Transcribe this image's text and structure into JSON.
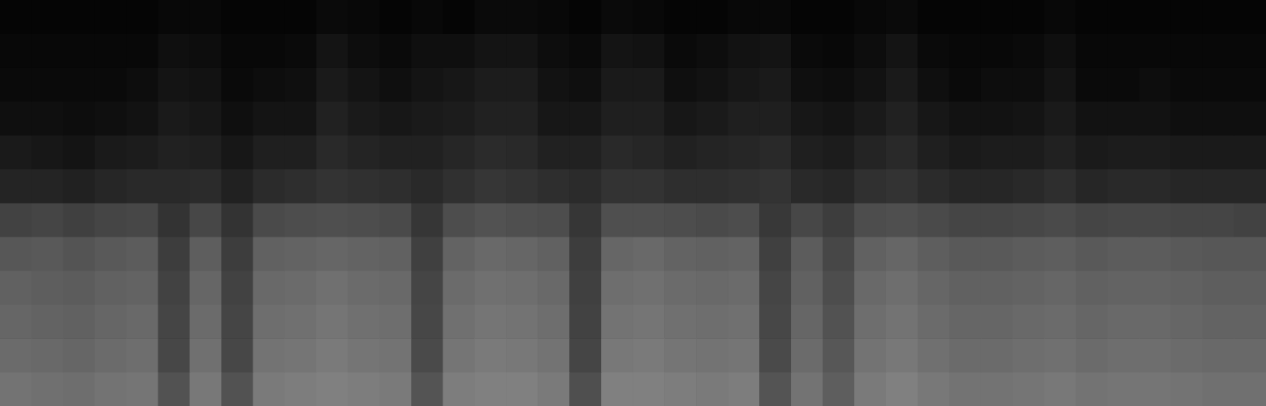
{
  "chart_data": {
    "type": "heatmap",
    "color": "#ffffff",
    "grid": false,
    "tick_labels": false,
    "cells": [
      [
        2,
        2,
        2,
        2,
        2,
        3,
        3,
        2,
        2,
        2,
        4,
        3,
        2,
        3,
        2,
        4,
        4,
        3,
        2,
        4,
        3,
        2,
        2,
        3,
        3,
        2,
        2,
        3,
        4,
        2,
        2,
        2,
        2,
        3,
        2,
        2,
        2,
        2,
        2,
        2
      ],
      [
        3,
        3,
        3,
        3,
        3,
        6,
        5,
        3,
        3,
        4,
        8,
        5,
        4,
        6,
        6,
        8,
        8,
        5,
        4,
        8,
        7,
        4,
        5,
        7,
        8,
        4,
        3,
        5,
        8,
        4,
        3,
        3,
        4,
        6,
        3,
        3,
        3,
        3,
        3,
        3
      ],
      [
        4,
        4,
        4,
        4,
        5,
        8,
        7,
        4,
        5,
        6,
        10,
        8,
        6,
        8,
        9,
        11,
        11,
        7,
        6,
        10,
        10,
        6,
        7,
        9,
        10,
        6,
        5,
        7,
        10,
        6,
        4,
        5,
        5,
        8,
        4,
        4,
        5,
        4,
        4,
        4
      ],
      [
        6,
        6,
        5,
        6,
        7,
        10,
        9,
        6,
        8,
        8,
        13,
        10,
        9,
        10,
        11,
        13,
        13,
        9,
        9,
        12,
        12,
        9,
        10,
        12,
        12,
        9,
        8,
        10,
        13,
        9,
        7,
        7,
        8,
        10,
        7,
        7,
        7,
        6,
        6,
        6
      ],
      [
        10,
        9,
        8,
        10,
        11,
        13,
        12,
        9,
        12,
        12,
        16,
        14,
        13,
        13,
        15,
        17,
        16,
        13,
        13,
        16,
        15,
        13,
        14,
        15,
        16,
        12,
        11,
        14,
        16,
        12,
        10,
        11,
        11,
        13,
        10,
        11,
        11,
        10,
        10,
        10
      ],
      [
        14,
        14,
        13,
        15,
        16,
        16,
        17,
        13,
        17,
        18,
        20,
        19,
        18,
        16,
        19,
        21,
        20,
        18,
        17,
        20,
        20,
        18,
        18,
        19,
        20,
        16,
        15,
        19,
        20,
        17,
        15,
        15,
        16,
        18,
        15,
        16,
        16,
        15,
        15,
        15
      ],
      [
        26,
        27,
        25,
        27,
        28,
        20,
        28,
        20,
        29,
        30,
        31,
        30,
        29,
        21,
        30,
        32,
        31,
        30,
        21,
        31,
        31,
        30,
        29,
        30,
        22,
        28,
        24,
        30,
        31,
        29,
        27,
        27,
        28,
        29,
        27,
        28,
        28,
        27,
        27,
        26
      ],
      [
        34,
        35,
        33,
        35,
        36,
        24,
        37,
        24,
        38,
        39,
        40,
        39,
        38,
        25,
        39,
        41,
        40,
        38,
        24,
        40,
        41,
        39,
        38,
        39,
        25,
        36,
        28,
        38,
        40,
        37,
        35,
        35,
        36,
        37,
        35,
        36,
        36,
        35,
        34,
        34
      ],
      [
        38,
        37,
        36,
        38,
        39,
        26,
        40,
        26,
        41,
        42,
        44,
        42,
        41,
        27,
        42,
        44,
        43,
        41,
        25,
        43,
        44,
        42,
        41,
        42,
        27,
        38,
        30,
        41,
        43,
        40,
        38,
        38,
        39,
        40,
        38,
        39,
        39,
        38,
        37,
        37
      ],
      [
        40,
        39,
        38,
        40,
        41,
        27,
        42,
        27,
        43,
        44,
        46,
        44,
        43,
        28,
        44,
        46,
        45,
        43,
        26,
        45,
        46,
        44,
        43,
        44,
        28,
        40,
        32,
        43,
        45,
        42,
        40,
        40,
        41,
        42,
        40,
        41,
        41,
        40,
        39,
        39
      ],
      [
        42,
        41,
        40,
        42,
        43,
        28,
        44,
        28,
        45,
        46,
        48,
        46,
        45,
        29,
        46,
        48,
        47,
        45,
        27,
        47,
        48,
        46,
        45,
        46,
        29,
        42,
        34,
        45,
        47,
        44,
        42,
        42,
        43,
        44,
        42,
        43,
        43,
        42,
        41,
        41
      ],
      [
        45,
        44,
        43,
        45,
        46,
        32,
        47,
        32,
        48,
        49,
        50,
        49,
        48,
        33,
        49,
        50,
        50,
        48,
        31,
        50,
        50,
        49,
        48,
        49,
        33,
        45,
        37,
        48,
        50,
        47,
        45,
        45,
        46,
        47,
        45,
        46,
        46,
        45,
        44,
        44
      ]
    ]
  }
}
